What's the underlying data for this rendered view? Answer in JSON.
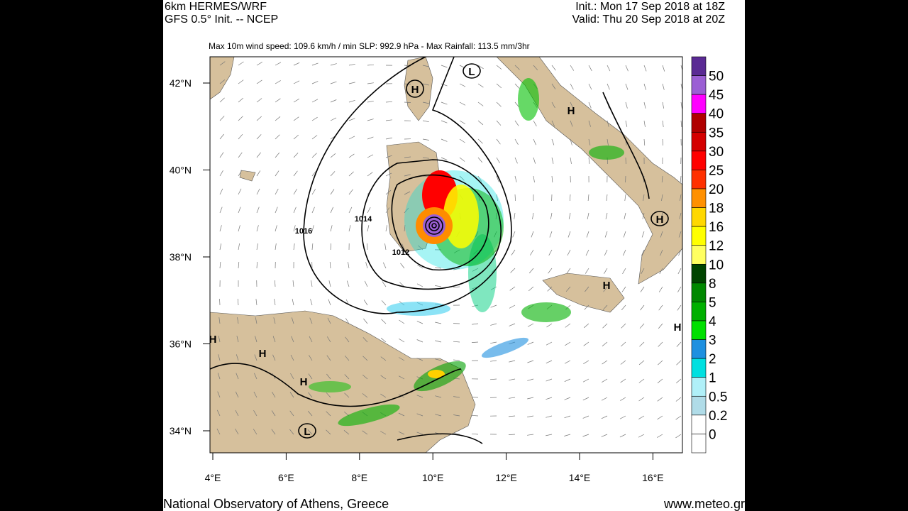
{
  "header": {
    "model": "6km HERMES/WRF",
    "init_source": "GFS 0.5° Init. -- NCEP",
    "init_time": "Init.: Mon 17 Sep 2018 at 18Z",
    "valid_time": "Valid: Thu 20 Sep 2018 at 20Z"
  },
  "subtitle": "Max 10m wind speed: 109.6 km/h / min SLP: 992.9 hPa - Max Rainfall: 113.5 mm/3hr",
  "latitude_labels": [
    "42°N",
    "40°N",
    "38°N",
    "36°N",
    "34°N"
  ],
  "longitude_labels": [
    "4°E",
    "6°E",
    "8°E",
    "10°E",
    "12°E",
    "14°E",
    "16°E"
  ],
  "contour_labels": [
    "1016",
    "1014",
    "1012"
  ],
  "pressure_markers": [
    "H",
    "L",
    "H",
    "H",
    "H",
    "H",
    "H",
    "H",
    "H",
    "L"
  ],
  "colorbar": {
    "labels": [
      "50",
      "45",
      "40",
      "35",
      "30",
      "25",
      "20",
      "18",
      "16",
      "12",
      "10",
      "8",
      "5",
      "4",
      "3",
      "2",
      "1",
      "0.5",
      "0.2",
      "0"
    ],
    "colors": [
      "#5a2a94",
      "#9b5fd4",
      "#ff00ff",
      "#b00000",
      "#d40000",
      "#ff0000",
      "#ff3000",
      "#ff9000",
      "#ffd800",
      "#ffff00",
      "#ffff60",
      "#004400",
      "#008800",
      "#00b000",
      "#00e000",
      "#1e90e0",
      "#00e0e0",
      "#b0f0f8",
      "#b0dce8",
      "#ffffff",
      "#ffffff"
    ]
  },
  "footer": {
    "left": "National Observatory of Athens, Greece",
    "right": "www.meteo.gr"
  }
}
